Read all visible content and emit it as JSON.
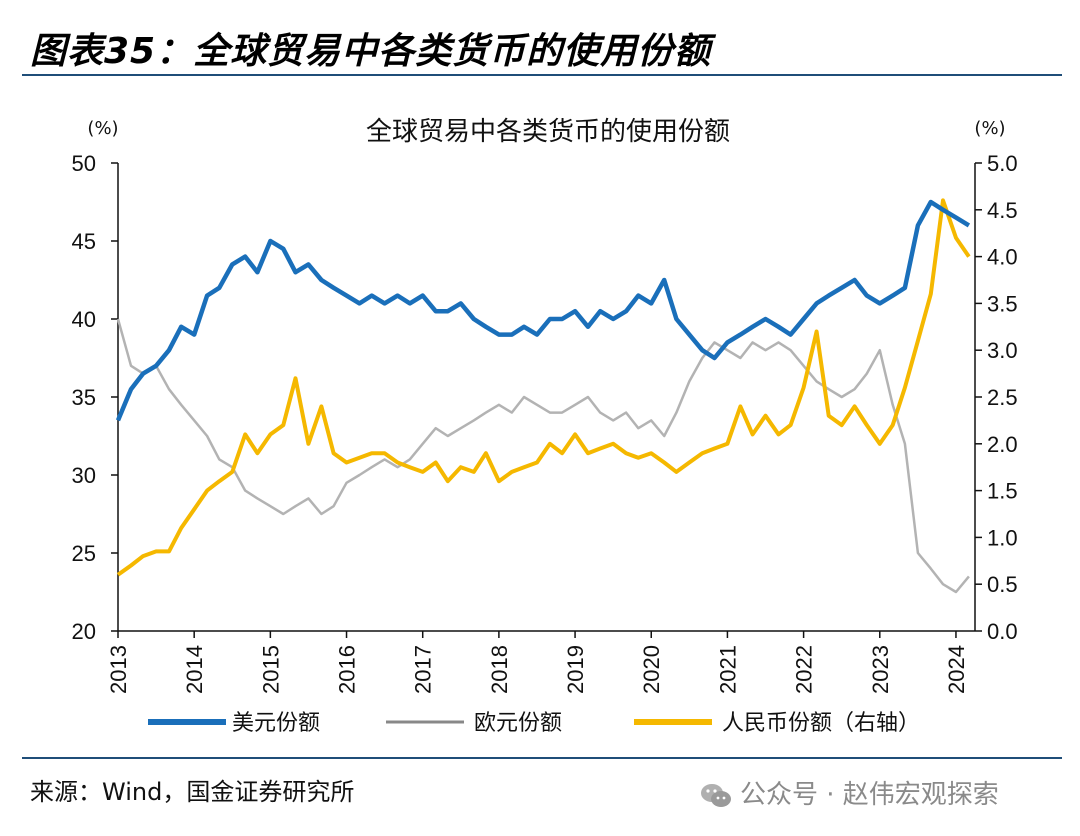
{
  "figure": {
    "title": "图表35：全球贸易中各类货币的使用份额",
    "source": "来源：Wind，国金证券研究所",
    "watermark": "公众号 · 赵伟宏观探索"
  },
  "chart_data": {
    "type": "line",
    "title": "全球贸易中各类货币的使用份额",
    "y_left_unit": "(%)",
    "y_right_unit": "(%)",
    "ylim_left": [
      20,
      50
    ],
    "ylim_right": [
      0,
      5
    ],
    "yticks_left": [
      "20",
      "25",
      "30",
      "35",
      "40",
      "45",
      "50"
    ],
    "yticks_right": [
      "0.0",
      "0.5",
      "1.0",
      "1.5",
      "2.0",
      "2.5",
      "3.0",
      "3.5",
      "4.0",
      "4.5",
      "5.0"
    ],
    "xlim": [
      2013,
      2024.25
    ],
    "xticks": [
      "2013",
      "2014",
      "2015",
      "2016",
      "2017",
      "2018",
      "2019",
      "2020",
      "2021",
      "2022",
      "2023",
      "2024"
    ],
    "grid": false,
    "legend_position": "bottom",
    "series": [
      {
        "name": "美元份额",
        "axis": "left",
        "color": "#1a6fba",
        "x": [
          2013.0,
          2013.17,
          2013.33,
          2013.5,
          2013.67,
          2013.83,
          2014.0,
          2014.17,
          2014.33,
          2014.5,
          2014.67,
          2014.83,
          2015.0,
          2015.17,
          2015.33,
          2015.5,
          2015.67,
          2015.83,
          2016.0,
          2016.17,
          2016.33,
          2016.5,
          2016.67,
          2016.83,
          2017.0,
          2017.17,
          2017.33,
          2017.5,
          2017.67,
          2017.83,
          2018.0,
          2018.17,
          2018.33,
          2018.5,
          2018.67,
          2018.83,
          2019.0,
          2019.17,
          2019.33,
          2019.5,
          2019.67,
          2019.83,
          2020.0,
          2020.17,
          2020.33,
          2020.5,
          2020.67,
          2020.83,
          2021.0,
          2021.17,
          2021.33,
          2021.5,
          2021.67,
          2021.83,
          2022.0,
          2022.17,
          2022.33,
          2022.5,
          2022.67,
          2022.83,
          2023.0,
          2023.17,
          2023.33,
          2023.5,
          2023.67,
          2023.83,
          2024.0,
          2024.17
        ],
        "values": [
          33.5,
          35.5,
          36.5,
          37.0,
          38.0,
          39.5,
          39.0,
          41.5,
          42.0,
          43.5,
          44.0,
          43.0,
          45.0,
          44.5,
          43.0,
          43.5,
          42.5,
          42.0,
          41.5,
          41.0,
          41.5,
          41.0,
          41.5,
          41.0,
          41.5,
          40.5,
          40.5,
          41.0,
          40.0,
          39.5,
          39.0,
          39.0,
          39.5,
          39.0,
          40.0,
          40.0,
          40.5,
          39.5,
          40.5,
          40.0,
          40.5,
          41.5,
          41.0,
          42.5,
          40.0,
          39.0,
          38.0,
          37.5,
          38.5,
          39.0,
          39.5,
          40.0,
          39.5,
          39.0,
          40.0,
          41.0,
          41.5,
          42.0,
          42.5,
          41.5,
          41.0,
          41.5,
          42.0,
          46.0,
          47.5,
          47.0,
          46.5,
          46.0
        ]
      },
      {
        "name": "欧元份额",
        "axis": "left",
        "color": "#b3b3b3",
        "x": [
          2013.0,
          2013.17,
          2013.33,
          2013.5,
          2013.67,
          2013.83,
          2014.0,
          2014.17,
          2014.33,
          2014.5,
          2014.67,
          2014.83,
          2015.0,
          2015.17,
          2015.33,
          2015.5,
          2015.67,
          2015.83,
          2016.0,
          2016.17,
          2016.33,
          2016.5,
          2016.67,
          2016.83,
          2017.0,
          2017.17,
          2017.33,
          2017.5,
          2017.67,
          2017.83,
          2018.0,
          2018.17,
          2018.33,
          2018.5,
          2018.67,
          2018.83,
          2019.0,
          2019.17,
          2019.33,
          2019.5,
          2019.67,
          2019.83,
          2020.0,
          2020.17,
          2020.33,
          2020.5,
          2020.67,
          2020.83,
          2021.0,
          2021.17,
          2021.33,
          2021.5,
          2021.67,
          2021.83,
          2022.0,
          2022.17,
          2022.33,
          2022.5,
          2022.67,
          2022.83,
          2023.0,
          2023.17,
          2023.33,
          2023.5,
          2023.67,
          2023.83,
          2024.0,
          2024.17
        ],
        "values": [
          40.0,
          37.0,
          36.5,
          37.0,
          35.5,
          34.5,
          33.5,
          32.5,
          31.0,
          30.5,
          29.0,
          28.5,
          28.0,
          27.5,
          28.0,
          28.5,
          27.5,
          28.0,
          29.5,
          30.0,
          30.5,
          31.0,
          30.5,
          31.0,
          32.0,
          33.0,
          32.5,
          33.0,
          33.5,
          34.0,
          34.5,
          34.0,
          35.0,
          34.5,
          34.0,
          34.0,
          34.5,
          35.0,
          34.0,
          33.5,
          34.0,
          33.0,
          33.5,
          32.5,
          34.0,
          36.0,
          37.5,
          38.5,
          38.0,
          37.5,
          38.5,
          38.0,
          38.5,
          38.0,
          37.0,
          36.0,
          35.5,
          35.0,
          35.5,
          36.5,
          38.0,
          34.5,
          32.0,
          25.0,
          24.0,
          23.0,
          22.5,
          23.5
        ]
      },
      {
        "name": "人民币份额（右轴）",
        "axis": "right",
        "color": "#f5b800",
        "x": [
          2013.0,
          2013.17,
          2013.33,
          2013.5,
          2013.67,
          2013.83,
          2014.0,
          2014.17,
          2014.33,
          2014.5,
          2014.67,
          2014.83,
          2015.0,
          2015.17,
          2015.33,
          2015.5,
          2015.67,
          2015.83,
          2016.0,
          2016.17,
          2016.33,
          2016.5,
          2016.67,
          2016.83,
          2017.0,
          2017.17,
          2017.33,
          2017.5,
          2017.67,
          2017.83,
          2018.0,
          2018.17,
          2018.33,
          2018.5,
          2018.67,
          2018.83,
          2019.0,
          2019.17,
          2019.33,
          2019.5,
          2019.67,
          2019.83,
          2020.0,
          2020.17,
          2020.33,
          2020.5,
          2020.67,
          2020.83,
          2021.0,
          2021.17,
          2021.33,
          2021.5,
          2021.67,
          2021.83,
          2022.0,
          2022.17,
          2022.33,
          2022.5,
          2022.67,
          2022.83,
          2023.0,
          2023.17,
          2023.33,
          2023.5,
          2023.67,
          2023.83,
          2024.0,
          2024.17
        ],
        "values": [
          0.6,
          0.7,
          0.8,
          0.85,
          0.85,
          1.1,
          1.3,
          1.5,
          1.6,
          1.7,
          2.1,
          1.9,
          2.1,
          2.2,
          2.7,
          2.0,
          2.4,
          1.9,
          1.8,
          1.85,
          1.9,
          1.9,
          1.8,
          1.75,
          1.7,
          1.8,
          1.6,
          1.75,
          1.7,
          1.9,
          1.6,
          1.7,
          1.75,
          1.8,
          2.0,
          1.9,
          2.1,
          1.9,
          1.95,
          2.0,
          1.9,
          1.85,
          1.9,
          1.8,
          1.7,
          1.8,
          1.9,
          1.95,
          2.0,
          2.4,
          2.1,
          2.3,
          2.1,
          2.2,
          2.6,
          3.2,
          2.3,
          2.2,
          2.4,
          2.2,
          2.0,
          2.2,
          2.6,
          3.1,
          3.6,
          4.6,
          4.2,
          4.0
        ]
      }
    ]
  }
}
